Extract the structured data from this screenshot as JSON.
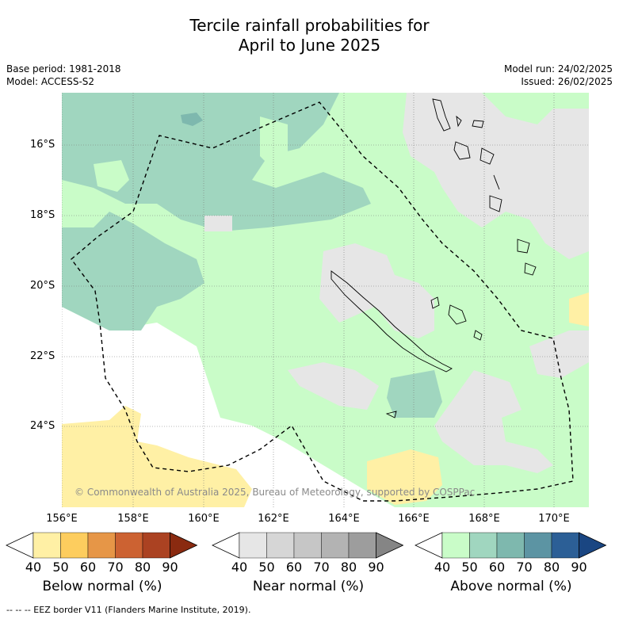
{
  "title_line1": "Tercile rainfall probabilities for",
  "title_line2": "April to June 2025",
  "meta": {
    "base_period": "Base period: 1981-2018",
    "model": "Model: ACCESS-S2",
    "model_run": "Model run: 24/02/2025",
    "issued": "Issued: 26/02/2025"
  },
  "map": {
    "lat_labels": [
      "16°S",
      "18°S",
      "20°S",
      "22°S",
      "24°S"
    ],
    "lon_labels": [
      "156°E",
      "158°E",
      "160°E",
      "162°E",
      "164°E",
      "166°E",
      "168°E",
      "170°E"
    ],
    "copyright": "© Commonwealth of Australia 2025, Bureau of Meteorology, supported by COSPPac"
  },
  "colorbars": [
    {
      "title": "Below normal (%)",
      "ticks": [
        "40",
        "50",
        "60",
        "70",
        "80",
        "90"
      ],
      "colors": [
        "#ffffff",
        "#fff0a5",
        "#fdcd5e",
        "#e69647",
        "#cc6232",
        "#ab4222",
        "#8a2a10"
      ]
    },
    {
      "title": "Near normal (%)",
      "ticks": [
        "40",
        "50",
        "60",
        "70",
        "80",
        "90"
      ],
      "colors": [
        "#ffffff",
        "#e6e6e6",
        "#d6d6d6",
        "#c6c6c6",
        "#b3b3b3",
        "#9d9d9d",
        "#858585"
      ]
    },
    {
      "title": "Above normal (%)",
      "ticks": [
        "40",
        "50",
        "60",
        "70",
        "80",
        "90"
      ],
      "colors": [
        "#ffffff",
        "#c9fcc8",
        "#a0d6bf",
        "#7eb8ae",
        "#5c94a3",
        "#2c5f96",
        "#1a4682"
      ]
    }
  ],
  "footnote": "--  --  -- EEZ border V11 (Flanders Marine Institute, 2019)."
}
